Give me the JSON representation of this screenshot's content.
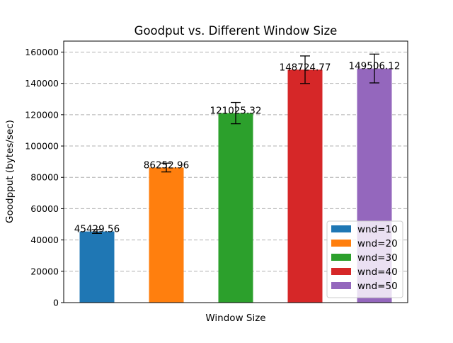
{
  "chart_data": {
    "type": "bar",
    "title": "Goodput vs. Different Window Size",
    "xlabel": "Window Size",
    "ylabel": "Goodpput (bytes/sec)",
    "ylim": [
      0,
      167000
    ],
    "yticks": [
      0,
      20000,
      40000,
      60000,
      80000,
      100000,
      120000,
      140000,
      160000
    ],
    "grid": "horizontal-dashed",
    "legend_position": "lower-right",
    "series": [
      {
        "name": "wnd=10",
        "value": 45429.56,
        "label": "45429.56",
        "error": 1200,
        "color": "#1f77b4"
      },
      {
        "name": "wnd=20",
        "value": 86252.96,
        "label": "86252.96",
        "error": 2800,
        "color": "#ff7f0e"
      },
      {
        "name": "wnd=30",
        "value": 121025.32,
        "label": "121025.32",
        "error": 6800,
        "color": "#2ca02c"
      },
      {
        "name": "wnd=40",
        "value": 148724.77,
        "label": "148724.77",
        "error": 8800,
        "color": "#d62728"
      },
      {
        "name": "wnd=50",
        "value": 149506.12,
        "label": "149506.12",
        "error": 9200,
        "color": "#9467bd"
      }
    ]
  }
}
